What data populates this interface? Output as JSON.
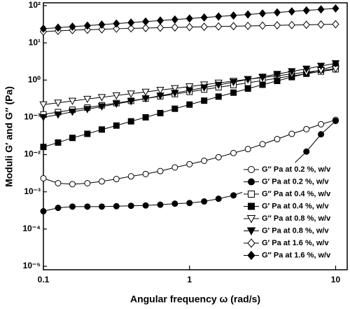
{
  "chart_data": {
    "type": "line",
    "xlabel": "Angular frequency ω (rad/s)",
    "ylabel": "Moduli G′ and G″ (Pa)",
    "xscale": "log",
    "yscale": "log",
    "xlim": [
      0.1,
      12
    ],
    "ylim": [
      1e-05,
      100
    ],
    "xticks": [
      0.1,
      1,
      10
    ],
    "yticks": [
      {
        "value": 1e-05,
        "label": "10⁻⁵"
      },
      {
        "value": 0.0001,
        "label": "10⁻⁴"
      },
      {
        "value": 0.001,
        "label": "10⁻³"
      },
      {
        "value": 0.01,
        "label": "10⁻²"
      },
      {
        "value": 0.1,
        "label": "10⁻¹"
      },
      {
        "value": 1,
        "label": "10⁰"
      },
      {
        "value": 10,
        "label": "10¹"
      },
      {
        "value": 100,
        "label": "10²"
      }
    ],
    "legend": "lower right",
    "x": [
      0.1,
      0.126,
      0.158,
      0.2,
      0.251,
      0.316,
      0.398,
      0.501,
      0.631,
      0.794,
      1,
      1.26,
      1.58,
      2,
      2.51,
      3.16,
      3.98,
      5.01,
      6.31,
      7.94,
      10
    ],
    "series": [
      {
        "name": "G″ Pa at 0.2 %, w/v",
        "color": "#000000",
        "marker": "circle",
        "filled": false,
        "values": [
          0.0023,
          0.0017,
          0.0016,
          0.0017,
          0.0019,
          0.0022,
          0.0026,
          0.003,
          0.0036,
          0.0045,
          0.0055,
          0.0068,
          0.0085,
          0.011,
          0.014,
          0.019,
          0.026,
          0.036,
          0.048,
          0.065,
          0.085
        ]
      },
      {
        "name": "G′ Pa at 0.2 %, w/v",
        "color": "#000000",
        "marker": "circle",
        "filled": true,
        "values": [
          0.0003,
          0.00037,
          0.0004,
          0.0004,
          0.0004,
          0.00041,
          0.00042,
          0.00043,
          0.00045,
          0.00048,
          0.0005,
          0.00055,
          0.00065,
          0.0008,
          0.0011,
          0.0016,
          0.0027,
          0.005,
          0.012,
          0.035,
          0.08
        ]
      },
      {
        "name": "G″ Pa at 0.4 %, w/v",
        "color": "#000000",
        "marker": "square",
        "filled": false,
        "values": [
          0.12,
          0.138,
          0.159,
          0.182,
          0.21,
          0.241,
          0.277,
          0.319,
          0.367,
          0.421,
          0.484,
          0.557,
          0.64,
          0.736,
          0.846,
          0.97,
          1.12,
          1.29,
          1.48,
          1.7,
          1.95
        ]
      },
      {
        "name": "G′ Pa at 0.4 %, w/v",
        "color": "#000000",
        "marker": "square",
        "filled": true,
        "values": [
          0.016,
          0.021,
          0.028,
          0.036,
          0.047,
          0.06,
          0.078,
          0.1,
          0.13,
          0.17,
          0.22,
          0.28,
          0.36,
          0.46,
          0.59,
          0.75,
          0.95,
          1.2,
          1.5,
          1.9,
          2.4
        ]
      },
      {
        "name": "G″ Pa at 0.8 %, w/v",
        "color": "#000000",
        "marker": "triangle-down",
        "filled": false,
        "values": [
          0.22,
          0.245,
          0.275,
          0.31,
          0.345,
          0.385,
          0.43,
          0.48,
          0.54,
          0.6,
          0.67,
          0.75,
          0.84,
          0.94,
          1.05,
          1.17,
          1.3,
          1.46,
          1.63,
          1.82,
          2.0
        ]
      },
      {
        "name": "G′ Pa at 0.8 %, w/v",
        "color": "#000000",
        "marker": "triangle-down",
        "filled": true,
        "values": [
          0.1,
          0.118,
          0.14,
          0.165,
          0.195,
          0.23,
          0.27,
          0.32,
          0.38,
          0.45,
          0.53,
          0.63,
          0.74,
          0.88,
          1.04,
          1.22,
          1.45,
          1.71,
          2.0,
          2.4,
          2.8
        ]
      },
      {
        "name": "G′ Pa at 1.6 %, w/v",
        "color": "#000000",
        "marker": "diamond",
        "filled": false,
        "values": [
          20,
          21,
          22,
          22.5,
          23,
          24,
          24.5,
          25,
          25.5,
          26,
          26.5,
          27,
          27.5,
          28,
          28.5,
          29,
          29.5,
          30,
          30.5,
          31,
          31.5
        ]
      },
      {
        "name": "G″ Pa at 1.6 %, w/v",
        "color": "#000000",
        "marker": "diamond",
        "filled": true,
        "values": [
          24,
          25.6,
          27.2,
          29,
          30.9,
          32.9,
          35,
          37.3,
          39.7,
          42.3,
          45,
          48,
          51,
          54.3,
          57.8,
          61.6,
          65.6,
          69.8,
          74.3,
          79.1,
          84
        ]
      }
    ]
  }
}
